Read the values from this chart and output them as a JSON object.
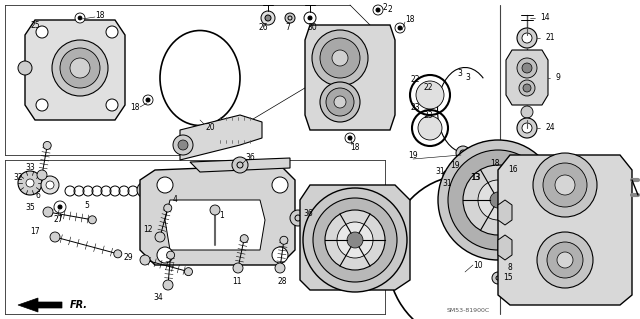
{
  "bg_color": "#ffffff",
  "diagram_code": "SM53-81900C",
  "fig_w": 6.4,
  "fig_h": 3.19,
  "dpi": 100
}
